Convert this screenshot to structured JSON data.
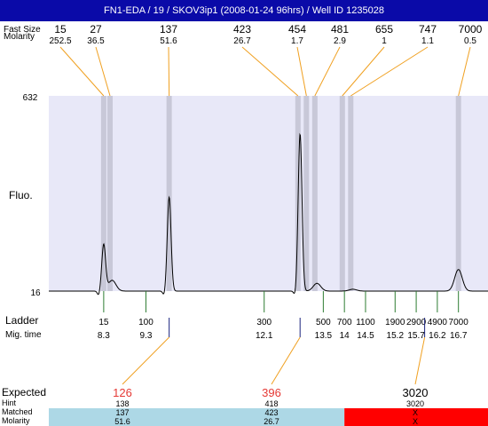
{
  "title": "FN1-EDA / 19 / SKOV3ip1 (2008-01-24 96hrs) / Well ID 1235028",
  "labels": {
    "row_top_1": "Fast Size",
    "row_top_2": "Molarity",
    "fluo": "Fluo.",
    "ladder": "Ladder",
    "mig_time": "Mig. time",
    "expected": "Expected",
    "hint": "Hint",
    "matched": "Matched",
    "molarity": "Molarity"
  },
  "colors": {
    "title_bg": "#0a0aa8",
    "plot_bg": "#e8e8f8",
    "band": "#c8c8d8",
    "orange": "#f0a020",
    "green": "#2e7d32",
    "blue_tick": "#1a237e",
    "expected_red": "#e53935",
    "match_ok": "#add8e6",
    "match_fail": "#ff0000"
  },
  "chart_data": {
    "type": "line",
    "title": "FN1-EDA / 19 / SKOV3ip1 (2008-01-24 96hrs) / Well ID 1235028",
    "ylabel": "Fluo.",
    "ylim": [
      16,
      632
    ],
    "y_tick_labels": [
      "632",
      "16"
    ],
    "time_range": [
      7.0,
      17.4
    ],
    "fragments": [
      {
        "size": "15",
        "molarity": "252.5",
        "time": 8.3
      },
      {
        "size": "27",
        "molarity": "36.5",
        "time": 8.45
      },
      {
        "size": "137",
        "molarity": "51.6",
        "time": 9.85
      },
      {
        "size": "423",
        "molarity": "26.7",
        "time": 12.9
      },
      {
        "size": "454",
        "molarity": "1.7",
        "time": 13.1
      },
      {
        "size": "481",
        "molarity": "2.9",
        "time": 13.3
      },
      {
        "size": "655",
        "molarity": "1",
        "time": 13.95
      },
      {
        "size": "747",
        "molarity": "1.1",
        "time": 14.15
      },
      {
        "size": "7000",
        "molarity": "0.5",
        "time": 16.7
      }
    ],
    "peaks": [
      {
        "time": 8.3,
        "height": 150
      },
      {
        "time": 8.5,
        "height": 35
      },
      {
        "time": 9.85,
        "height": 305
      },
      {
        "time": 12.95,
        "height": 510
      },
      {
        "time": 13.35,
        "height": 25
      },
      {
        "time": 14.2,
        "height": 6
      },
      {
        "time": 16.7,
        "height": 70
      }
    ],
    "baseline": 16,
    "ladder": [
      {
        "size": "15",
        "time": "8.3",
        "t": 8.3
      },
      {
        "size": "100",
        "time": "9.3",
        "t": 9.3
      },
      {
        "size": "300",
        "time": "12.1",
        "t": 12.1
      },
      {
        "size": "500",
        "time": "13.5",
        "t": 13.5
      },
      {
        "size": "700",
        "time": "14",
        "t": 14.0
      },
      {
        "size": "1100",
        "time": "14.5",
        "t": 14.5
      },
      {
        "size": "1900",
        "time": "15.2",
        "t": 15.2
      },
      {
        "size": "2900",
        "time": "15.7",
        "t": 15.7
      },
      {
        "size": "4900",
        "time": "16.2",
        "t": 16.2
      },
      {
        "size": "7000",
        "time": "16.7",
        "t": 16.7
      }
    ],
    "expected": [
      {
        "expected": "126",
        "hint": "138",
        "matched": "137",
        "molarity": "51.6",
        "status": "ok",
        "t": 9.85,
        "label_t": 9.6
      },
      {
        "expected": "396",
        "hint": "418",
        "matched": "423",
        "molarity": "26.7",
        "status": "ok",
        "t": 12.95,
        "label_t": 12.5
      },
      {
        "expected": "3020",
        "hint": "3020",
        "matched": "X",
        "molarity": "X",
        "status": "fail",
        "t": 15.9,
        "label_t": 15.4
      }
    ],
    "match_segments": [
      {
        "status": "ok",
        "t_start": 7.0,
        "t_end": 14.0
      },
      {
        "status": "fail",
        "t_start": 14.0,
        "t_end": 17.4
      }
    ]
  }
}
